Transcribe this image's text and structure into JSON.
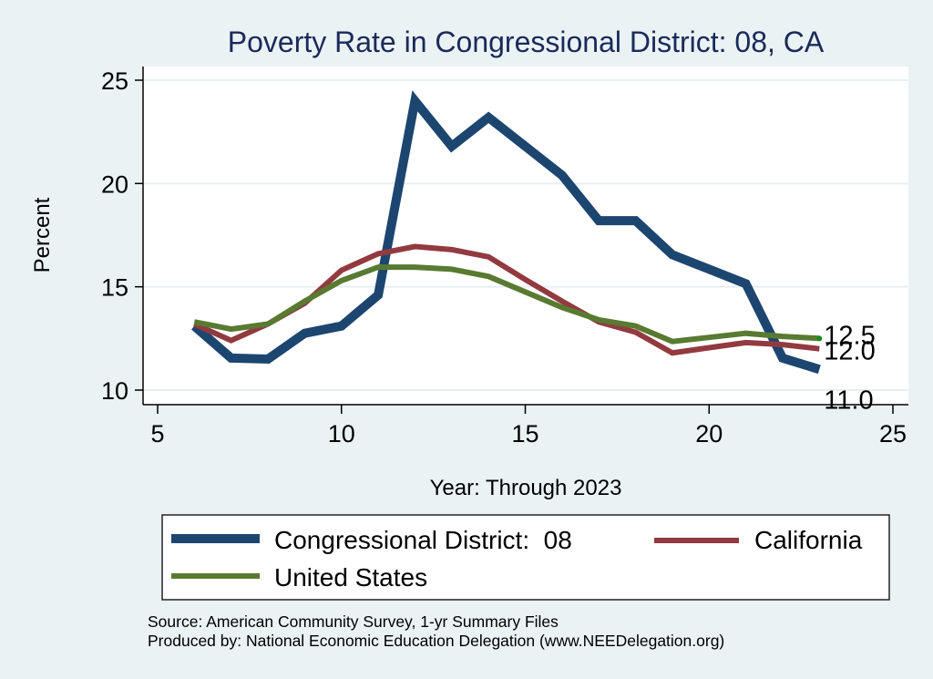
{
  "chart_data": {
    "type": "line",
    "title": "Poverty Rate in Congressional District:  08, CA",
    "xlabel": "Year: Through 2023",
    "ylabel": "Percent",
    "xlim": [
      5,
      25
    ],
    "ylim": [
      10,
      25
    ],
    "xticks": [
      5,
      10,
      15,
      20,
      25
    ],
    "yticks": [
      10,
      15,
      20,
      25
    ],
    "grid": "horizontal",
    "legend_position": "bottom",
    "x": [
      6,
      7,
      8,
      9,
      10,
      11,
      12,
      13,
      14,
      15,
      16,
      17,
      18,
      19,
      20,
      21,
      22,
      23
    ],
    "series": [
      {
        "name": "Congressional District:  08",
        "color": "#1c4670",
        "values": [
          13.1,
          11.55,
          11.5,
          12.75,
          13.1,
          14.6,
          24.0,
          21.8,
          23.2,
          21.8,
          20.4,
          18.2,
          18.2,
          16.55,
          15.85,
          15.15,
          11.55,
          11.0
        ],
        "end_label": "11.0"
      },
      {
        "name": "California",
        "color": "#923a40",
        "values": [
          13.2,
          12.4,
          13.2,
          14.2,
          15.8,
          16.6,
          16.95,
          16.8,
          16.45,
          15.35,
          14.3,
          13.3,
          12.8,
          11.8,
          12.05,
          12.3,
          12.2,
          12.0
        ],
        "end_label": "12.0"
      },
      {
        "name": "United States",
        "color": "#587a31",
        "values": [
          13.3,
          12.95,
          13.2,
          14.3,
          15.3,
          15.95,
          15.95,
          15.85,
          15.5,
          14.75,
          14.0,
          13.4,
          13.1,
          12.35,
          12.55,
          12.75,
          12.6,
          12.5
        ],
        "end_label": "12.5",
        "end_marker_color": "#1a8a1a"
      }
    ],
    "notes": [
      "Source: American Community Survey, 1-yr Summary Files",
      "Produced by: National Economic Education Delegation (www.NEEDelegation.org)"
    ]
  }
}
